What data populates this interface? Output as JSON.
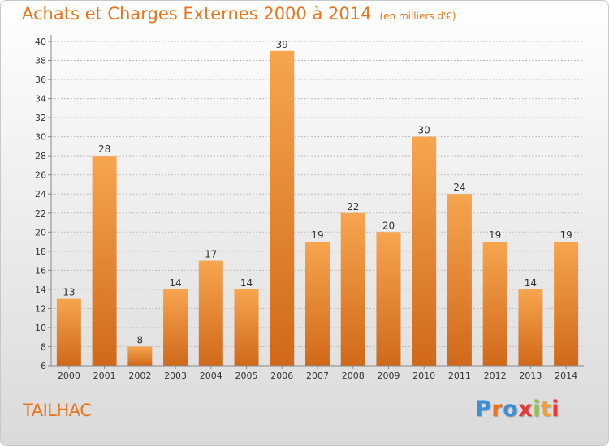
{
  "header": {
    "title": "Achats et Charges Externes 2000 à 2014",
    "subtitle": "(en milliers d'€)"
  },
  "footer": {
    "place": "TAILHAC",
    "logo_text": "Proxiti",
    "logo_colors": [
      "#3a8fd6",
      "#e8741e",
      "#3a8fd6",
      "#e23b3b",
      "#8cc63f",
      "#f0a030",
      "#e23b3b"
    ]
  },
  "colors": {
    "bar_top": "#f7a54f",
    "bar_bottom": "#d0691a",
    "title": "#e8741e",
    "grid": "#bdbdbd",
    "text": "#333333"
  },
  "chart_data": {
    "type": "bar",
    "title": "Achats et Charges Externes 2000 à 2014",
    "subtitle": "(en milliers d'€)",
    "categories": [
      "2000",
      "2001",
      "2002",
      "2003",
      "2004",
      "2005",
      "2006",
      "2007",
      "2008",
      "2009",
      "2010",
      "2011",
      "2012",
      "2013",
      "2014"
    ],
    "values": [
      13,
      28,
      8,
      14,
      17,
      14,
      39,
      19,
      22,
      20,
      30,
      24,
      19,
      14,
      19
    ],
    "ylim": [
      6,
      40
    ],
    "yticks": [
      "6",
      "8",
      "10",
      "12",
      "14",
      "16",
      "18",
      "20",
      "22",
      "24",
      "26",
      "28",
      "30",
      "32",
      "34",
      "36",
      "38",
      "40"
    ],
    "grid": true,
    "legend": "none"
  }
}
